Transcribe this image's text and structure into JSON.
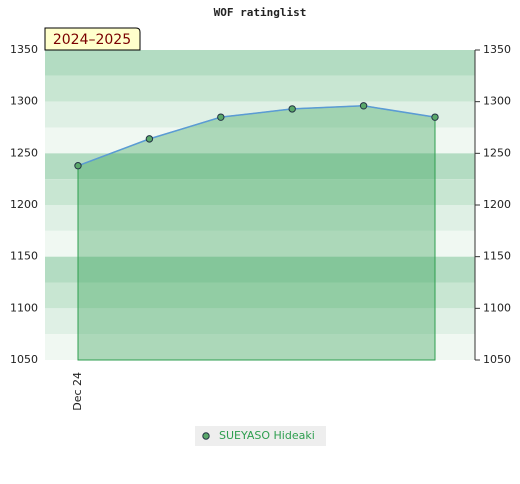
{
  "chart_data": {
    "type": "area",
    "title": "WOF ratinglist",
    "badge": "2024–2025",
    "categories": [
      "Dec 24",
      null,
      null,
      null,
      null,
      null
    ],
    "series": [
      {
        "name": "SUEYASO Hideaki",
        "color": "#2e9e4f",
        "values": [
          1238,
          1264,
          1285,
          1293,
          1296,
          1285
        ]
      }
    ],
    "line_color": "#5b9bd5",
    "ylim": [
      1050,
      1350
    ],
    "yticks": [
      1050,
      1100,
      1150,
      1200,
      1250,
      1300,
      1350
    ],
    "legend": "bottom"
  }
}
